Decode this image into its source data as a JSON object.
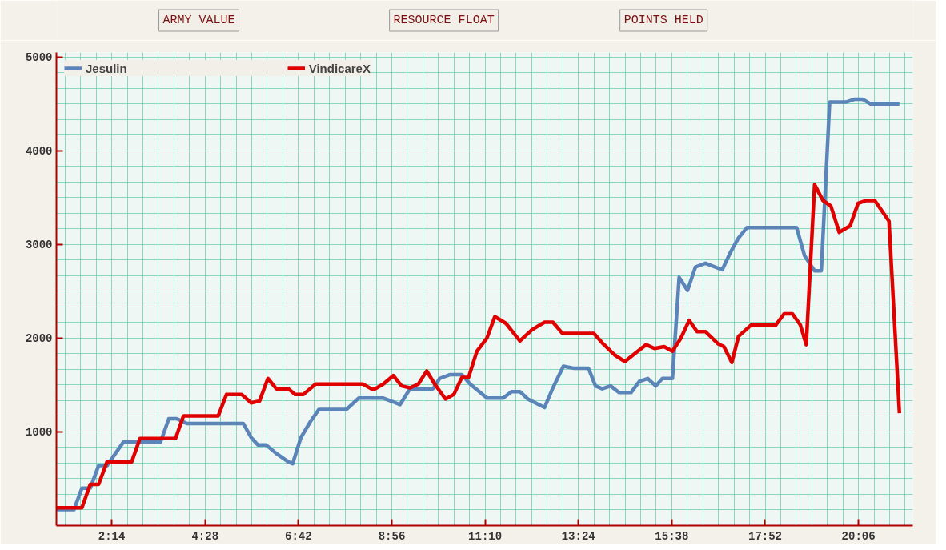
{
  "chart_data": {
    "type": "line",
    "annotations": [
      "ARMY VALUE",
      "RESOURCE FLOAT",
      "POINTS HELD"
    ],
    "xlim": [
      0.91,
      21.4
    ],
    "ylim": [
      0,
      5050
    ],
    "xticks": [
      {
        "value": 2.2333,
        "label": "2:14"
      },
      {
        "value": 4.4667,
        "label": "4:28"
      },
      {
        "value": 6.7,
        "label": "6:42"
      },
      {
        "value": 8.9333,
        "label": "8:56"
      },
      {
        "value": 11.1667,
        "label": "11:10"
      },
      {
        "value": 13.4,
        "label": "13:24"
      },
      {
        "value": 15.6333,
        "label": "15:38"
      },
      {
        "value": 17.8667,
        "label": "17:52"
      },
      {
        "value": 20.1,
        "label": "20:06"
      }
    ],
    "yticks": [
      1000,
      2000,
      3000,
      4000,
      5000
    ],
    "grid": true,
    "legend": "top left",
    "line_style": "solid",
    "marker": "none",
    "series": [
      {
        "name": "Jesulin",
        "color": "#5b84b8",
        "x": [
          0.91,
          1.33,
          1.52,
          1.72,
          1.92,
          2.12,
          2.51,
          3.4,
          3.6,
          3.79,
          4.03,
          5.38,
          5.57,
          5.73,
          5.93,
          6.17,
          6.46,
          6.56,
          6.76,
          7.0,
          7.19,
          7.85,
          8.14,
          8.73,
          8.97,
          9.13,
          9.37,
          9.92,
          10.08,
          10.32,
          10.61,
          10.81,
          11.21,
          11.6,
          11.8,
          12.0,
          12.19,
          12.59,
          12.79,
          13.04,
          13.28,
          13.64,
          13.81,
          13.97,
          14.17,
          14.37,
          14.66,
          14.86,
          15.06,
          15.25,
          15.41,
          15.65,
          15.81,
          16.01,
          16.2,
          16.44,
          16.84,
          17.03,
          17.23,
          17.43,
          18.62,
          18.81,
          19.05,
          19.21,
          19.41,
          19.8,
          20.0,
          20.2,
          20.39,
          21.08
        ],
        "values": [
          170,
          170,
          400,
          400,
          640,
          640,
          890,
          890,
          1140,
          1140,
          1090,
          1090,
          940,
          860,
          860,
          770,
          680,
          660,
          940,
          1120,
          1240,
          1240,
          1360,
          1360,
          1320,
          1290,
          1460,
          1460,
          1570,
          1610,
          1610,
          1510,
          1360,
          1360,
          1430,
          1430,
          1350,
          1260,
          1470,
          1700,
          1680,
          1680,
          1490,
          1460,
          1490,
          1420,
          1420,
          1540,
          1570,
          1490,
          1570,
          1570,
          2650,
          2510,
          2760,
          2800,
          2730,
          2910,
          3070,
          3180,
          3180,
          2880,
          2720,
          2720,
          4520,
          4520,
          4550,
          4550,
          4500,
          4500
        ]
      },
      {
        "name": "VindicareX",
        "color": "#e00000",
        "x": [
          0.91,
          1.52,
          1.72,
          1.92,
          2.12,
          2.71,
          2.91,
          3.76,
          3.95,
          4.78,
          4.98,
          5.34,
          5.57,
          5.77,
          5.97,
          6.17,
          6.46,
          6.62,
          6.82,
          7.11,
          8.24,
          8.44,
          8.54,
          8.73,
          8.97,
          9.17,
          9.37,
          9.57,
          9.77,
          9.96,
          10.22,
          10.42,
          10.61,
          10.77,
          10.97,
          11.21,
          11.4,
          11.66,
          12.0,
          12.29,
          12.59,
          12.79,
          13.02,
          13.77,
          13.97,
          14.27,
          14.51,
          14.82,
          15.02,
          15.22,
          15.45,
          15.65,
          15.85,
          16.05,
          16.24,
          16.44,
          16.74,
          16.88,
          17.07,
          17.23,
          17.53,
          18.12,
          18.32,
          18.52,
          18.71,
          18.85,
          19.05,
          19.25,
          19.44,
          19.64,
          19.9,
          20.09,
          20.29,
          20.49,
          20.83,
          21.08
        ],
        "values": [
          190,
          190,
          440,
          440,
          680,
          680,
          930,
          930,
          1170,
          1170,
          1400,
          1400,
          1310,
          1330,
          1570,
          1460,
          1460,
          1400,
          1400,
          1510,
          1510,
          1460,
          1460,
          1510,
          1600,
          1490,
          1470,
          1510,
          1650,
          1510,
          1350,
          1400,
          1580,
          1580,
          1860,
          2000,
          2230,
          2160,
          1970,
          2090,
          2170,
          2170,
          2050,
          2050,
          1950,
          1820,
          1750,
          1860,
          1930,
          1890,
          1910,
          1860,
          2000,
          2190,
          2070,
          2070,
          1940,
          1910,
          1740,
          2020,
          2140,
          2140,
          2260,
          2260,
          2140,
          1930,
          3640,
          3470,
          3410,
          3130,
          3200,
          3440,
          3470,
          3470,
          3250,
          1200
        ]
      }
    ]
  }
}
